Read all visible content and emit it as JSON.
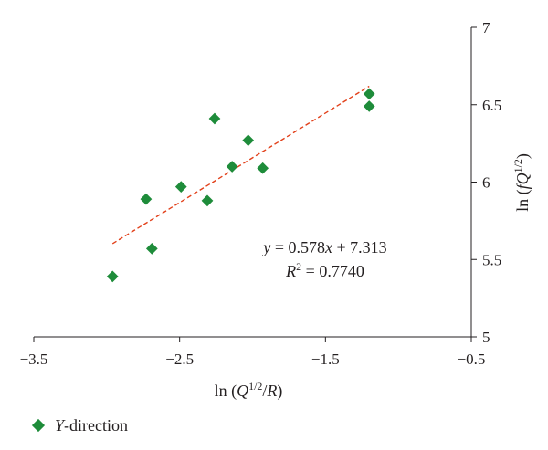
{
  "chart_data": {
    "type": "scatter",
    "xlabel": "ln (Q^{1/2}/R)",
    "ylabel": "ln (fQ^{1/2})",
    "xlim": [
      -3.5,
      -0.5
    ],
    "ylim": [
      5,
      7
    ],
    "xticks": [
      -3.5,
      -2.5,
      -1.5,
      -0.5
    ],
    "xtick_labels": [
      "−3.5",
      "−2.5",
      "−1.5",
      "−0.5"
    ],
    "yticks": [
      5,
      5.5,
      6,
      6.5,
      7
    ],
    "ytick_labels": [
      "5",
      "5.5",
      "6",
      "6.5",
      "7"
    ],
    "y_axis_position": "right",
    "grid": false,
    "legend_position": "bottom-left",
    "series": [
      {
        "name": "Y-direction",
        "marker": "diamond",
        "color": "#1e8c3a",
        "points": [
          [
            -2.96,
            5.39
          ],
          [
            -2.73,
            5.89
          ],
          [
            -2.69,
            5.57
          ],
          [
            -2.49,
            5.97
          ],
          [
            -2.31,
            5.88
          ],
          [
            -2.26,
            6.41
          ],
          [
            -2.14,
            6.1
          ],
          [
            -2.03,
            6.27
          ],
          [
            -1.93,
            6.09
          ],
          [
            -1.2,
            6.57
          ],
          [
            -1.2,
            6.49
          ]
        ]
      }
    ],
    "trendline": {
      "slope": 0.578,
      "intercept": 7.313,
      "x_range": [
        -2.96,
        -1.2
      ],
      "color": "#e2401a",
      "style": "dashed"
    },
    "annotations": {
      "equation": "y = 0.578x + 7.313",
      "r_squared": "R^2 = 0.7740"
    }
  }
}
